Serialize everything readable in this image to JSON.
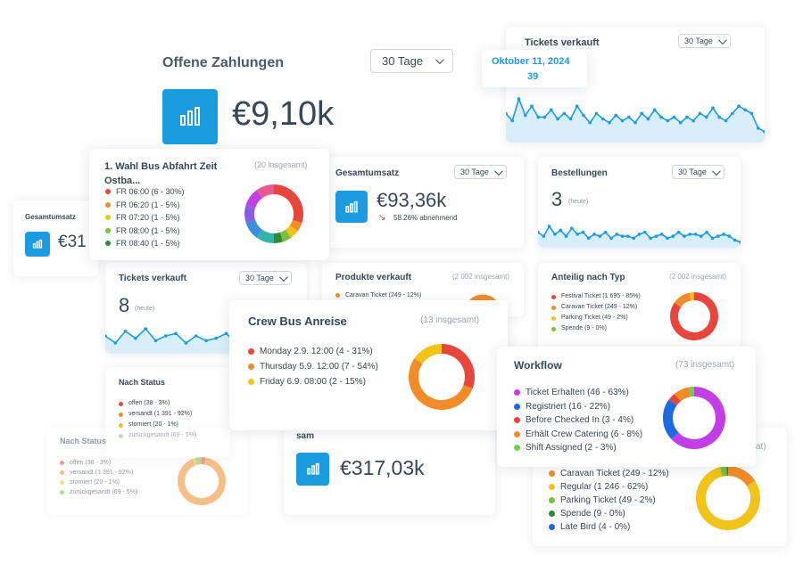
{
  "colors": {
    "accent": "#1c9ce0",
    "red": "#e8453c",
    "orange": "#f28c28",
    "yellow": "#f2c318",
    "green": "#7cbf3a",
    "darkgreen": "#2e8b3a",
    "purple": "#c23ee6",
    "blue": "#1e6be0",
    "lightgreen": "#6cd14a"
  },
  "offene": {
    "title": "Offene Zahlungen",
    "range": "30 Tage",
    "value": "€9,10k",
    "icon": "bar-chart-icon"
  },
  "tickets_top": {
    "title": "Tickets verkauft",
    "range": "30 Tage",
    "tooltip_date": "Oktober 11, 2024",
    "tooltip_value": "39",
    "chart_data": {
      "type": "line",
      "values": [
        14,
        10,
        22,
        13,
        18,
        12,
        12,
        16,
        11,
        14,
        11,
        18,
        13,
        9,
        14,
        11,
        9,
        13,
        10,
        12,
        9,
        14,
        11,
        16,
        12,
        10,
        12,
        9,
        12,
        10,
        14,
        12,
        17,
        12,
        10,
        14,
        18,
        16,
        14,
        6,
        4
      ]
    }
  },
  "bus_abfahrt": {
    "title": "1. Wahl Bus Abfahrt Zeit Ostba...",
    "total": "(20 insgesamt)",
    "items": [
      {
        "label": "FR 06:00 (6 - 30%)",
        "color": "#e8453c"
      },
      {
        "label": "FR 06:20 (1 - 5%)",
        "color": "#f28c28"
      },
      {
        "label": "FR 07:20 (1 - 5%)",
        "color": "#f2c318"
      },
      {
        "label": "FR 08:00 (1 - 5%)",
        "color": "#7cbf3a"
      },
      {
        "label": "FR 08:40 (1 - 5%)",
        "color": "#2e8b3a"
      }
    ],
    "chart_data": {
      "type": "pie",
      "values": [
        6,
        1,
        1,
        1,
        1,
        2,
        2,
        2,
        2,
        2
      ],
      "colors": [
        "#e8453c",
        "#f28c28",
        "#f2c318",
        "#7cbf3a",
        "#2e8b3a",
        "#34b3a8",
        "#3a8fe0",
        "#8a5ee0",
        "#c23ee6",
        "#e85a8c"
      ]
    }
  },
  "gesamt_left": {
    "title": "Gesamtumsatz",
    "value": "€31"
  },
  "gesamt": {
    "title": "Gesamtumsatz",
    "range": "30 Tage",
    "value": "€93,36k",
    "trend": "58.26% abnehmend"
  },
  "bestellungen": {
    "title": "Bestellungen",
    "range": "30 Tage",
    "value": "3",
    "unit": "(heute)",
    "chart_data": {
      "type": "line",
      "values": [
        6,
        4,
        9,
        5,
        7,
        4,
        8,
        5,
        6,
        3,
        5,
        4,
        6,
        3,
        5,
        4,
        4,
        3,
        5,
        6,
        3,
        4,
        5,
        3,
        4,
        6,
        4,
        5,
        5,
        4,
        6,
        3,
        4,
        5,
        4,
        2,
        1
      ]
    }
  },
  "tickets_mid": {
    "title": "Tickets verkauft",
    "range": "30 Tage",
    "value": "8",
    "unit": "(heute)",
    "chart_data": {
      "type": "line",
      "values": [
        6,
        3,
        8,
        5,
        9,
        4,
        6,
        7,
        3,
        6,
        4,
        5,
        7,
        3,
        4,
        5,
        3,
        2,
        4,
        2,
        3
      ]
    }
  },
  "produkte": {
    "title": "Produkte verkauft",
    "total": "(2 002 insgesamt)",
    "items": [
      {
        "label": "Caravan Ticket (249 - 12%)",
        "color": "#f28c28"
      }
    ]
  },
  "anteilig": {
    "title": "Anteilig nach Typ",
    "total": "(2 002 insgesamt)",
    "items": [
      {
        "label": "Festival Ticket (1 695 - 85%)",
        "color": "#e8453c"
      },
      {
        "label": "Caravan Ticket (249 - 12%)",
        "color": "#f28c28"
      },
      {
        "label": "Parking Ticket (49 - 2%)",
        "color": "#f2c318"
      },
      {
        "label": "Spende (9 - 0%)",
        "color": "#7cbf3a"
      }
    ],
    "chart_data": {
      "type": "pie",
      "values": [
        1695,
        249,
        49,
        9
      ],
      "colors": [
        "#e8453c",
        "#f28c28",
        "#f2c318",
        "#7cbf3a"
      ]
    }
  },
  "crew_bus": {
    "title": "Crew Bus Anreise",
    "total": "(13 insgesamt)",
    "items": [
      {
        "label": "Monday 2.9. 12:00 (4 - 31%)",
        "color": "#e8453c"
      },
      {
        "label": "Thursday 5.9. 12:00 (7 - 54%)",
        "color": "#f28c28"
      },
      {
        "label": "Friday 6.9. 08:00 (2 - 15%)",
        "color": "#f2c318"
      }
    ],
    "chart_data": {
      "type": "pie",
      "values": [
        4,
        7,
        2
      ],
      "colors": [
        "#e8453c",
        "#f28c28",
        "#f2c318"
      ]
    }
  },
  "nach_status_a": {
    "title": "Nach Status",
    "items": [
      {
        "label": "offen (38 - 3%)",
        "color": "#e8453c"
      },
      {
        "label": "versandt (1 391 - 92%)",
        "color": "#f28c28"
      },
      {
        "label": "storniert (20 - 1%)",
        "color": "#f2c318"
      },
      {
        "label": "zurückgesandt (69 - 5%)",
        "color": "#7cbf3a"
      }
    ]
  },
  "nach_status_b": {
    "title": "Nach Status",
    "items": [
      {
        "label": "offen (38 - 3%)",
        "color": "#e8453c"
      },
      {
        "label": "versandt (1 391 - 92%)",
        "color": "#f28c28"
      },
      {
        "label": "storniert (20 - 1%)",
        "color": "#f2c318"
      },
      {
        "label": "zurückgesandt (69 - 5%)",
        "color": "#7cbf3a"
      }
    ],
    "chart_data": {
      "type": "pie",
      "values": [
        38,
        1391,
        20,
        69
      ],
      "colors": [
        "#e8453c",
        "#f28c28",
        "#f2c318",
        "#7cbf3a"
      ]
    }
  },
  "workflow": {
    "title": "Workflow",
    "total": "(73 insgesamt)",
    "items": [
      {
        "label": "Ticket Erhalten (46 - 63%)",
        "color": "#c23ee6"
      },
      {
        "label": "Registriert (16 - 22%)",
        "color": "#1e6be0"
      },
      {
        "label": "Before Checked In (3 - 4%)",
        "color": "#e8453c"
      },
      {
        "label": "Erhält Crew Catering (6 - 8%)",
        "color": "#f28c28"
      },
      {
        "label": "Shift Assigned (2 - 3%)",
        "color": "#6cd14a"
      }
    ],
    "chart_data": {
      "type": "pie",
      "values": [
        46,
        16,
        3,
        6,
        2
      ],
      "colors": [
        "#c23ee6",
        "#1e6be0",
        "#e8453c",
        "#f28c28",
        "#6cd14a"
      ]
    }
  },
  "sam": {
    "partial": "sam",
    "value": "€317,03k"
  },
  "types_bottom": {
    "partial": "at)",
    "items": [
      {
        "label": "Caravan Ticket (249 - 12%)",
        "color": "#f28c28"
      },
      {
        "label": "Regular (1 246 - 62%)",
        "color": "#f2c318"
      },
      {
        "label": "Parking Ticket (49 - 2%)",
        "color": "#7cbf3a"
      },
      {
        "label": "Spende (9 - 0%)",
        "color": "#2e8b3a"
      },
      {
        "label": "Late Bird (4 - 0%)",
        "color": "#1e6be0"
      }
    ],
    "chart_data": {
      "type": "pie",
      "values": [
        249,
        1246,
        49,
        9,
        4
      ],
      "colors": [
        "#f28c28",
        "#f2c318",
        "#7cbf3a",
        "#2e8b3a",
        "#1e6be0"
      ]
    }
  }
}
